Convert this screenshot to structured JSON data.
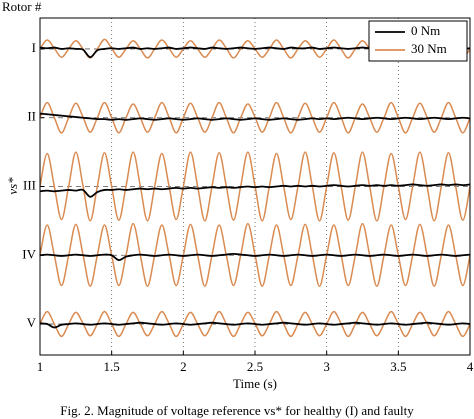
{
  "chart_data": {
    "type": "line",
    "ylabel": "vs*",
    "row_title": "Rotor #",
    "xlabel": "Time (s)",
    "caption": "Fig. 2. Magnitude of voltage reference vs* for healthy (I) and faulty",
    "xlim": [
      1,
      4
    ],
    "xticks": [
      1,
      1.5,
      2,
      2.5,
      3,
      3.5,
      4
    ],
    "ylim": [
      0.55,
      5.45
    ],
    "yticks": [
      {
        "value": 5,
        "label": "I"
      },
      {
        "value": 4,
        "label": "II"
      },
      {
        "value": 3,
        "label": "III"
      },
      {
        "value": 2,
        "label": "IV"
      },
      {
        "value": 1,
        "label": "V"
      }
    ],
    "grid": true,
    "legend": "upper-right",
    "x": [
      1,
      1.05,
      1.1,
      1.15,
      1.2,
      1.25,
      1.3,
      1.35,
      1.4,
      1.45,
      1.5,
      1.55,
      1.6,
      1.65,
      1.7,
      1.75,
      1.8,
      1.85,
      1.9,
      1.95,
      2,
      2.05,
      2.1,
      2.15,
      2.2,
      2.25,
      2.3,
      2.35,
      2.4,
      2.45,
      2.5,
      2.55,
      2.6,
      2.65,
      2.7,
      2.75,
      2.8,
      2.85,
      2.9,
      2.95,
      3,
      3.05,
      3.1,
      3.15,
      3.2,
      3.25,
      3.3,
      3.35,
      3.4,
      3.45,
      3.5,
      3.55,
      3.6,
      3.65,
      3.7,
      3.75,
      3.8,
      3.85,
      3.9,
      3.95,
      4
    ],
    "series": [
      {
        "name": "0 Nm",
        "color": "#000000",
        "values": [
          [
            5.02,
            5.01,
            5.02,
            5,
            5.01,
            5,
            4.99,
            4.88,
            4.98,
            5,
            5.01,
            5,
            5.01,
            5.02,
            5,
            5.01,
            5,
            5.01,
            5.02,
            5,
            5.01,
            5.02,
            5.01,
            5,
            5.02,
            5.01,
            5,
            5.01,
            5.02,
            5.01,
            5,
            5.01,
            5.02,
            5.01,
            5,
            5.02,
            5.01,
            5.01,
            5.02,
            5,
            5.01,
            5.02,
            5.01,
            5,
            5.01,
            5.02,
            5.01,
            5,
            5.01,
            5.02,
            5.01,
            5,
            5.01,
            5.02,
            5.01,
            5,
            5.01,
            5.02,
            5.01,
            5,
            5.01
          ],
          [
            4.06,
            4.05,
            4.04,
            4.03,
            4.02,
            4.01,
            4,
            3.99,
            3.98,
            3.98,
            3.97,
            3.98,
            3.97,
            3.98,
            3.99,
            3.98,
            3.97,
            3.98,
            3.99,
            3.98,
            3.97,
            3.98,
            3.99,
            3.98,
            3.97,
            3.98,
            3.99,
            3.98,
            3.97,
            3.98,
            3.99,
            3.98,
            3.97,
            3.98,
            3.99,
            3.98,
            3.97,
            3.98,
            3.99,
            3.98,
            3.99,
            3.98,
            3.99,
            4,
            3.99,
            3.98,
            3.99,
            4,
            3.99,
            3.98,
            3.99,
            4,
            3.99,
            3.98,
            3.99,
            4,
            3.99,
            3.98,
            3.99,
            4,
            3.99
          ],
          [
            2.93,
            2.94,
            2.93,
            2.94,
            2.95,
            2.94,
            2.95,
            2.85,
            2.92,
            2.95,
            2.95,
            2.96,
            2.95,
            2.96,
            2.97,
            2.96,
            2.97,
            2.96,
            2.97,
            2.98,
            2.97,
            2.98,
            2.97,
            2.98,
            2.99,
            2.98,
            2.99,
            2.98,
            2.99,
            3,
            2.99,
            3,
            2.99,
            3,
            3.01,
            3,
            3.01,
            3,
            3.01,
            3,
            3.01,
            3.02,
            3.01,
            3,
            3.01,
            3.02,
            3.01,
            3.02,
            3.01,
            3.02,
            3.01,
            3.02,
            3.03,
            3.02,
            3.01,
            3.02,
            3.03,
            3.02,
            3.03,
            3.02,
            3.03
          ],
          [
            2,
            2.01,
            2,
            1.99,
            2,
            2.01,
            2,
            1.99,
            2,
            2.01,
            2,
            1.93,
            1.98,
            2,
            2.01,
            2,
            1.99,
            2,
            2.01,
            2,
            1.99,
            2,
            2.01,
            2,
            1.99,
            2,
            2.01,
            2.02,
            2.01,
            2,
            1.99,
            2,
            2.01,
            2,
            1.99,
            2,
            2.01,
            2,
            1.99,
            2,
            2.01,
            2,
            1.99,
            2,
            2.01,
            2,
            1.99,
            2,
            2.01,
            2,
            1.99,
            2,
            2.01,
            2,
            1.99,
            2,
            2.01,
            2,
            1.99,
            2,
            2.01
          ],
          [
            1.01,
            1,
            0.95,
            0.99,
            1,
            1.01,
            1,
            0.99,
            1,
            1.01,
            1,
            0.99,
            1,
            1.01,
            1.02,
            1.01,
            1,
            0.99,
            1,
            1.01,
            1,
            0.99,
            1,
            1.01,
            1.02,
            1.01,
            1,
            0.99,
            1,
            1.01,
            1,
            0.99,
            1,
            1.01,
            1.02,
            1.01,
            1,
            0.99,
            1,
            1.01,
            1,
            0.99,
            1,
            1.01,
            1.02,
            1.01,
            1,
            0.99,
            1,
            1.01,
            1,
            0.99,
            1,
            1.01,
            1.02,
            1.01,
            1,
            0.99,
            1,
            1.01,
            1
          ]
        ]
      },
      {
        "name": "30 Nm",
        "color": "#d98b52",
        "values": [
          [
            5,
            5.13,
            5.01,
            4.88,
            5,
            5.12,
            5,
            4.87,
            5,
            5.14,
            5.01,
            4.88,
            5,
            5.12,
            5,
            4.87,
            5,
            5.13,
            5.01,
            4.88,
            5,
            5.12,
            5,
            4.88,
            5,
            5.13,
            5.01,
            4.87,
            5,
            5.12,
            5,
            4.88,
            5,
            5.13,
            5,
            4.87,
            5,
            5.12,
            5.01,
            4.88,
            5,
            5.13,
            5,
            4.87,
            5,
            5.12,
            5,
            4.88,
            5,
            5.13,
            5.01,
            4.87,
            5,
            5.12,
            5,
            4.88,
            5,
            5.13,
            5,
            4.87,
            5
          ],
          [
            4,
            4.22,
            4,
            3.78,
            4,
            4.21,
            4.01,
            3.79,
            4,
            4.22,
            4,
            3.78,
            4,
            4.2,
            4,
            3.79,
            4,
            4.22,
            4.01,
            3.78,
            4,
            4.21,
            4,
            3.79,
            4,
            4.22,
            4,
            3.78,
            4,
            4.2,
            4.01,
            3.79,
            4,
            4.22,
            4,
            3.78,
            4,
            4.21,
            4,
            3.79,
            4,
            4.22,
            4.01,
            3.78,
            4,
            4.2,
            4,
            3.79,
            4,
            4.22,
            4,
            3.78,
            4,
            4.21,
            4.01,
            3.79,
            4,
            4.22,
            4,
            3.78,
            4
          ],
          [
            3,
            3.48,
            3,
            2.52,
            3,
            3.5,
            3.01,
            2.5,
            3,
            3.49,
            3,
            2.51,
            3,
            3.5,
            3,
            2.5,
            3,
            3.48,
            3.01,
            2.52,
            3,
            3.5,
            3,
            2.5,
            3,
            3.49,
            3,
            2.51,
            3,
            3.5,
            3.01,
            2.5,
            3,
            3.48,
            3,
            2.52,
            3,
            3.5,
            3,
            2.5,
            3,
            3.49,
            3.01,
            2.51,
            3,
            3.5,
            3,
            2.5,
            3,
            3.48,
            3,
            2.52,
            3,
            3.5,
            3.01,
            2.5,
            3,
            3.49,
            3,
            2.51,
            3
          ],
          [
            2,
            2.44,
            2,
            1.56,
            2,
            2.45,
            2.01,
            1.55,
            2,
            2.44,
            2,
            1.56,
            2,
            2.46,
            2,
            1.55,
            2,
            2.44,
            2.01,
            1.56,
            2,
            2.45,
            2,
            1.55,
            2,
            2.44,
            2,
            1.56,
            2,
            2.46,
            2.01,
            1.55,
            2,
            2.44,
            2,
            1.56,
            2,
            2.45,
            2,
            1.55,
            2,
            2.44,
            2.01,
            1.56,
            2,
            2.46,
            2,
            1.55,
            2,
            2.44,
            2,
            1.56,
            2,
            2.45,
            2.01,
            1.55,
            2,
            2.44,
            2,
            1.56,
            2
          ],
          [
            1,
            1.18,
            1,
            0.82,
            1,
            1.17,
            1.01,
            0.83,
            1,
            1.18,
            1,
            0.82,
            1,
            1.17,
            1,
            0.83,
            1,
            1.18,
            1.01,
            0.82,
            1,
            1.17,
            1,
            0.83,
            1,
            1.18,
            1,
            0.82,
            1,
            1.17,
            1.01,
            0.83,
            1,
            1.18,
            1,
            0.82,
            1,
            1.17,
            1,
            0.83,
            1,
            1.18,
            1.01,
            0.82,
            1,
            1.17,
            1,
            0.83,
            1,
            1.18,
            1,
            0.82,
            1,
            1.17,
            1.01,
            0.83,
            1,
            1.18,
            1,
            0.82,
            1
          ]
        ]
      }
    ]
  }
}
